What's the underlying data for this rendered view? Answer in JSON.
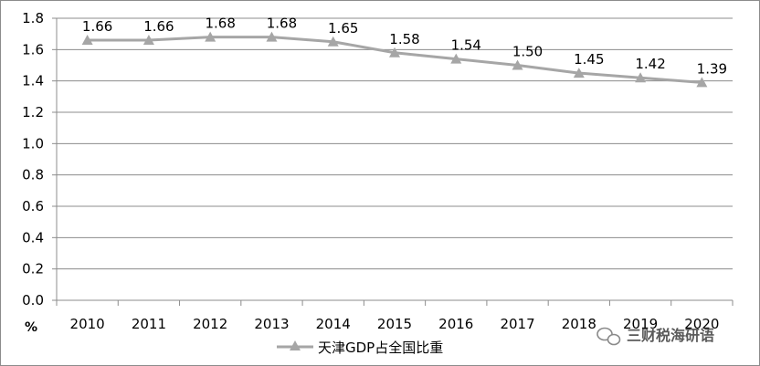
{
  "chart_data": {
    "type": "line",
    "title": "",
    "ylabel": "%",
    "xlabel": "",
    "ylim": [
      0,
      1.8
    ],
    "ytick_step": 0.2,
    "grid": true,
    "legend_position": "bottom",
    "categories": [
      "2010",
      "2011",
      "2012",
      "2013",
      "2014",
      "2015",
      "2016",
      "2017",
      "2018",
      "2019",
      "2020"
    ],
    "yticks": [
      "0.0",
      "0.2",
      "0.4",
      "0.6",
      "0.8",
      "1.0",
      "1.2",
      "1.4",
      "1.6",
      "1.8"
    ],
    "series": [
      {
        "name": "天津GDP占全国比重",
        "values": [
          1.66,
          1.66,
          1.68,
          1.68,
          1.65,
          1.58,
          1.54,
          1.5,
          1.45,
          1.42,
          1.39
        ],
        "labels": [
          "1.66",
          "1.66",
          "1.68",
          "1.68",
          "1.65",
          "1.58",
          "1.54",
          "1.50",
          "1.45",
          "1.42",
          "1.39"
        ],
        "color": "#a6a6a6",
        "marker": "triangle"
      }
    ]
  },
  "watermark": {
    "text": "三财税海研语",
    "icon": "wechat-icon"
  }
}
